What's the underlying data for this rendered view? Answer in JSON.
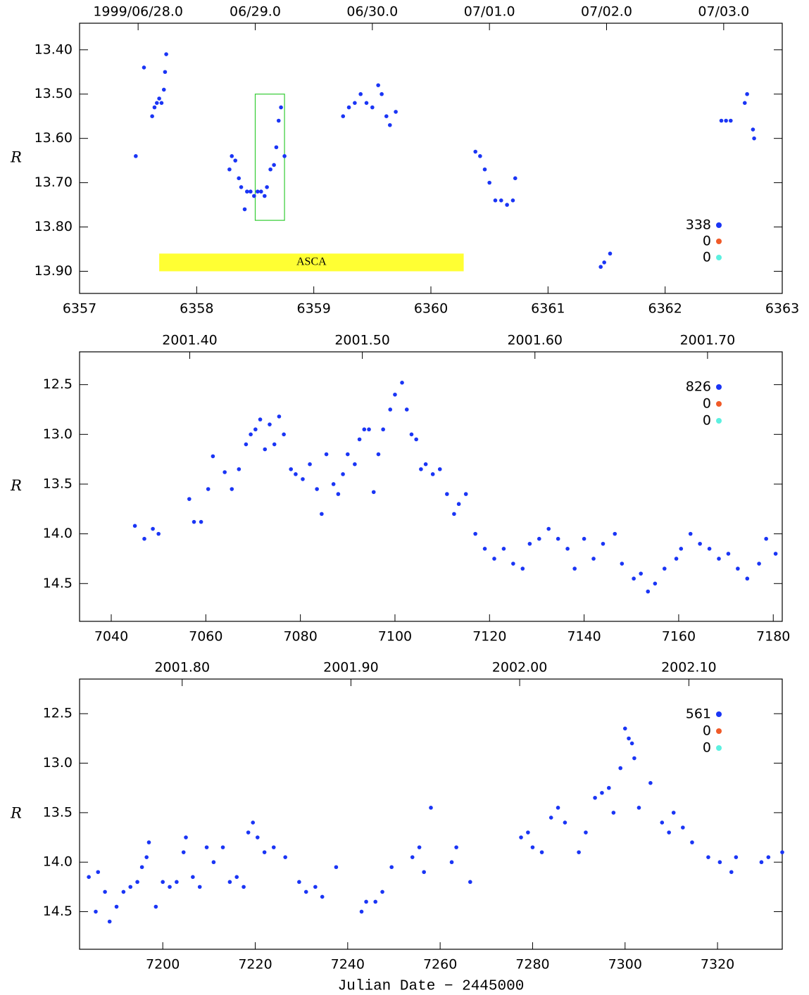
{
  "chart_data": [
    {
      "type": "scatter",
      "y_label": "R",
      "y_inverted": true,
      "xlim": [
        6357,
        6363
      ],
      "ylim": [
        13.34,
        13.95
      ],
      "xticks": [
        6357,
        6358,
        6359,
        6360,
        6361,
        6362,
        6363
      ],
      "yticks": [
        {
          "value": 13.4,
          "label": "13.40"
        },
        {
          "value": 13.5,
          "label": "13.50"
        },
        {
          "value": 13.6,
          "label": "13.60"
        },
        {
          "value": 13.7,
          "label": "13.70"
        },
        {
          "value": 13.8,
          "label": "13.80"
        },
        {
          "value": 13.9,
          "label": "13.90"
        }
      ],
      "top_ticks": [
        {
          "value": 6357.5,
          "label": "1999/06/28.0"
        },
        {
          "value": 6358.5,
          "label": "06/29.0"
        },
        {
          "value": 6359.5,
          "label": "06/30.0"
        },
        {
          "value": 6360.5,
          "label": "07/01.0"
        },
        {
          "value": 6361.5,
          "label": "07/02.0"
        },
        {
          "value": 6362.5,
          "label": "07/03.0"
        }
      ],
      "legend": "lower right",
      "annotations": [
        {
          "type": "band",
          "text": "ASCA",
          "x": [
            6357.68,
            6360.28
          ],
          "y": [
            13.86,
            13.9
          ],
          "color": "#ffff33"
        },
        {
          "type": "box",
          "x": [
            6358.5,
            6358.75
          ],
          "y": [
            13.5,
            13.785
          ],
          "color": "#33cc33"
        }
      ],
      "series": [
        {
          "count": 338,
          "color": "#1a35f5",
          "x": [
            6357.48,
            6357.55,
            6357.62,
            6357.64,
            6357.66,
            6357.68,
            6357.7,
            6357.72,
            6357.73,
            6357.74,
            6358.28,
            6358.3,
            6358.33,
            6358.36,
            6358.38,
            6358.41,
            6358.43,
            6358.46,
            6358.49,
            6358.52,
            6358.55,
            6358.58,
            6358.6,
            6358.63,
            6358.66,
            6358.68,
            6358.7,
            6358.72,
            6358.75,
            6359.25,
            6359.3,
            6359.35,
            6359.4,
            6359.45,
            6359.5,
            6359.55,
            6359.58,
            6359.62,
            6359.65,
            6359.7,
            6360.38,
            6360.42,
            6360.46,
            6360.5,
            6360.55,
            6360.6,
            6360.65,
            6360.7,
            6360.72,
            6361.45,
            6361.48,
            6361.53,
            6362.48,
            6362.52,
            6362.56,
            6362.68,
            6362.7,
            6362.75,
            6362.76
          ],
          "values": [
            13.64,
            13.44,
            13.55,
            13.53,
            13.52,
            13.51,
            13.52,
            13.49,
            13.45,
            13.41,
            13.67,
            13.64,
            13.65,
            13.69,
            13.71,
            13.76,
            13.72,
            13.72,
            13.73,
            13.72,
            13.72,
            13.73,
            13.71,
            13.67,
            13.66,
            13.62,
            13.56,
            13.53,
            13.64,
            13.55,
            13.53,
            13.52,
            13.5,
            13.52,
            13.53,
            13.48,
            13.5,
            13.55,
            13.57,
            13.54,
            13.63,
            13.64,
            13.67,
            13.7,
            13.74,
            13.74,
            13.75,
            13.74,
            13.69,
            13.89,
            13.88,
            13.86,
            13.56,
            13.56,
            13.56,
            13.52,
            13.5,
            13.58,
            13.6
          ]
        },
        {
          "count": 0,
          "color": "#f05a28",
          "x": [],
          "values": []
        },
        {
          "count": 0,
          "color": "#5cf0e0",
          "x": [],
          "values": []
        }
      ]
    },
    {
      "type": "scatter",
      "y_label": "R",
      "y_inverted": true,
      "xlim": [
        7033.3,
        7181.9
      ],
      "ylim": [
        12.17,
        14.88
      ],
      "xticks": [
        7040,
        7060,
        7080,
        7100,
        7120,
        7140,
        7160,
        7180
      ],
      "yticks": [
        12.5,
        {
          "value": 13,
          "label": "13.0"
        },
        13.5,
        {
          "value": 14,
          "label": "14.0"
        },
        14.5
      ],
      "top_ticks": [
        {
          "value": 7056.6,
          "label": "2001.40"
        },
        {
          "value": 7093.1,
          "label": "2001.50"
        },
        {
          "value": 7129.6,
          "label": "2001.60"
        },
        {
          "value": 7166.1,
          "label": "2001.70"
        }
      ],
      "legend": "upper right",
      "series": [
        {
          "count": 826,
          "color": "#1a35f5",
          "x": [
            7045,
            7047,
            7048.8,
            7050,
            7056.5,
            7057.5,
            7059,
            7060.5,
            7061.5,
            7064,
            7065.5,
            7067,
            7068.5,
            7069.5,
            7070.5,
            7071.5,
            7072.5,
            7073.5,
            7074.5,
            7075.5,
            7076.5,
            7078,
            7079,
            7080.5,
            7082,
            7083.5,
            7084.5,
            7085.5,
            7087,
            7088,
            7089,
            7090,
            7091.5,
            7092.5,
            7093.5,
            7094.5,
            7095.5,
            7096.5,
            7097.5,
            7099,
            7100,
            7101.5,
            7102.5,
            7103.5,
            7104.5,
            7105.5,
            7106.5,
            7108,
            7109.5,
            7111,
            7112.5,
            7113.5,
            7115,
            7117,
            7119,
            7121,
            7123,
            7125,
            7127,
            7128.5,
            7130.5,
            7132.5,
            7134.5,
            7136.5,
            7138,
            7140,
            7142,
            7144,
            7146.5,
            7148,
            7150.5,
            7152,
            7153.5,
            7155,
            7157,
            7159.5,
            7160.5,
            7162.5,
            7164.5,
            7166.5,
            7168.5,
            7170.5,
            7172.5,
            7174.5,
            7177,
            7178.5,
            7180.5
          ],
          "values": [
            13.92,
            14.05,
            13.95,
            14.0,
            13.65,
            13.88,
            13.88,
            13.55,
            13.22,
            13.38,
            13.55,
            13.35,
            13.1,
            13.0,
            12.95,
            12.85,
            13.15,
            12.9,
            13.1,
            12.82,
            13.0,
            13.35,
            13.4,
            13.45,
            13.3,
            13.55,
            13.8,
            13.2,
            13.5,
            13.6,
            13.4,
            13.2,
            13.3,
            13.05,
            12.95,
            12.95,
            13.58,
            13.2,
            12.95,
            12.75,
            12.6,
            12.48,
            12.75,
            13.0,
            13.05,
            13.35,
            13.3,
            13.4,
            13.35,
            13.6,
            13.8,
            13.7,
            13.6,
            14.0,
            14.15,
            14.25,
            14.15,
            14.3,
            14.35,
            14.1,
            14.05,
            13.95,
            14.05,
            14.15,
            14.35,
            14.05,
            14.25,
            14.1,
            14.0,
            14.3,
            14.45,
            14.4,
            14.58,
            14.5,
            14.35,
            14.25,
            14.15,
            14.0,
            14.1,
            14.15,
            14.25,
            14.2,
            14.35,
            14.45,
            14.3,
            14.05,
            14.2
          ]
        },
        {
          "count": 0,
          "color": "#f05a28",
          "x": [],
          "values": []
        },
        {
          "count": 0,
          "color": "#5cf0e0",
          "x": [],
          "values": []
        }
      ]
    },
    {
      "type": "scatter",
      "y_label": "R",
      "x_label": "Julian Date − 2445000",
      "y_inverted": true,
      "xlim": [
        7182,
        7334
      ],
      "ylim": [
        12.15,
        14.88
      ],
      "xticks": [
        7200,
        7220,
        7240,
        7260,
        7280,
        7300,
        7320
      ],
      "yticks": [
        12.5,
        {
          "value": 13,
          "label": "13.0"
        },
        13.5,
        {
          "value": 14,
          "label": "14.0"
        },
        14.5
      ],
      "top_ticks": [
        {
          "value": 7204.2,
          "label": "2001.80"
        },
        {
          "value": 7240.7,
          "label": "2001.90"
        },
        {
          "value": 7277.2,
          "label": "2002.00"
        },
        {
          "value": 7313.8,
          "label": "2002.10"
        }
      ],
      "legend": "upper right",
      "series": [
        {
          "count": 561,
          "color": "#1a35f5",
          "x": [
            7184,
            7185.5,
            7186,
            7187.5,
            7188.5,
            7190,
            7191.5,
            7193,
            7194.5,
            7195.5,
            7196.5,
            7197,
            7198.5,
            7200,
            7201.5,
            7203,
            7204.5,
            7205,
            7206.5,
            7208,
            7209.5,
            7211,
            7213,
            7214.5,
            7216,
            7217.5,
            7218.5,
            7219.5,
            7220.5,
            7222,
            7224,
            7226.5,
            7229.5,
            7231,
            7233,
            7234.5,
            7237.5,
            7243,
            7244,
            7246,
            7247.5,
            7249.5,
            7254,
            7255.5,
            7256.5,
            7258,
            7262.5,
            7263.5,
            7266.5,
            7277.5,
            7279,
            7280,
            7282,
            7284,
            7285.5,
            7287,
            7290,
            7291.5,
            7293.5,
            7295,
            7296.5,
            7297.5,
            7299,
            7300,
            7300.8,
            7301.5,
            7302,
            7303,
            7305.5,
            7308,
            7309.5,
            7310.5,
            7312.5,
            7314.5,
            7318,
            7320.5,
            7323,
            7324,
            7329.5,
            7331,
            7334
          ],
          "values": [
            14.15,
            14.5,
            14.1,
            14.3,
            14.6,
            14.45,
            14.3,
            14.25,
            14.2,
            14.05,
            13.95,
            13.8,
            14.45,
            14.2,
            14.25,
            14.2,
            13.9,
            13.75,
            14.15,
            14.25,
            13.85,
            14.0,
            13.85,
            14.2,
            14.15,
            14.25,
            13.7,
            13.6,
            13.75,
            13.9,
            13.85,
            13.95,
            14.2,
            14.3,
            14.25,
            14.35,
            14.05,
            14.5,
            14.4,
            14.4,
            14.3,
            14.05,
            13.95,
            13.85,
            14.1,
            13.45,
            14.0,
            13.85,
            14.2,
            13.75,
            13.7,
            13.85,
            13.9,
            13.55,
            13.45,
            13.6,
            13.9,
            13.7,
            13.35,
            13.3,
            13.25,
            13.5,
            13.05,
            12.65,
            12.75,
            12.8,
            12.95,
            13.45,
            13.2,
            13.6,
            13.7,
            13.5,
            13.65,
            13.8,
            13.95,
            14.0,
            14.1,
            13.95,
            14.0,
            13.95,
            13.9
          ]
        },
        {
          "count": 0,
          "color": "#f05a28",
          "x": [],
          "values": []
        },
        {
          "count": 0,
          "color": "#5cf0e0",
          "x": [],
          "values": []
        }
      ]
    }
  ]
}
